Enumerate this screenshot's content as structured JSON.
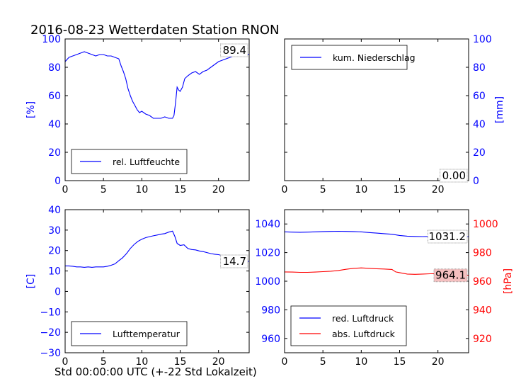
{
  "figure": {
    "title": "2016-08-23 Wetterdaten Station RNON",
    "xlabel": "Std 00:00:00 UTC (+-22 Std Lokalzeit)"
  },
  "colors": {
    "blue": "#0000ff",
    "red": "#ff0000",
    "last_bg": "#ffffff",
    "last_bg_red": "#f4c0c0"
  },
  "chart_data": [
    {
      "id": "humidity",
      "type": "line",
      "xlim": [
        0,
        24
      ],
      "ylim": [
        0,
        100
      ],
      "xticks": [
        0,
        5,
        10,
        15,
        20
      ],
      "yticks": [
        0,
        20,
        40,
        60,
        80,
        100
      ],
      "ylabel": "[%]",
      "yaxis_side": "left",
      "legend_loc": "lower left",
      "last_value": "89.4",
      "series": [
        {
          "name": "rel. Luftfeuchte",
          "color": "#0000ff",
          "x": [
            0,
            0.5,
            1,
            1.5,
            2,
            2.5,
            3,
            3.5,
            4,
            4.5,
            5,
            5.5,
            6,
            6.5,
            7,
            7.3,
            7.6,
            7.9,
            8.2,
            8.5,
            8.8,
            9.1,
            9.4,
            9.7,
            10,
            10.5,
            11,
            11.5,
            12,
            12.5,
            13,
            13.5,
            14,
            14.2,
            14.4,
            14.6,
            14.8,
            15,
            15.3,
            15.6,
            16,
            16.5,
            17,
            17.5,
            18,
            18.5,
            19,
            19.5,
            20,
            20.5,
            21,
            21.5,
            22,
            22.5,
            23,
            23.5,
            24
          ],
          "y": [
            84,
            87,
            88,
            89,
            90,
            91,
            90,
            89,
            88,
            89,
            89,
            88,
            88,
            87,
            86,
            81,
            77,
            72,
            65,
            60,
            56,
            53,
            50,
            48,
            49,
            47,
            46,
            44,
            44,
            44,
            45,
            44,
            44,
            46,
            55,
            66,
            64,
            63,
            66,
            72,
            74,
            76,
            77,
            75,
            77,
            78,
            80,
            82,
            84,
            85,
            86,
            87,
            88,
            89,
            90,
            90,
            89
          ]
        }
      ]
    },
    {
      "id": "precip",
      "type": "line",
      "xlim": [
        0,
        24
      ],
      "ylim": [
        0,
        100
      ],
      "xticks": [
        0,
        5,
        10,
        15,
        20
      ],
      "yticks": [
        0,
        20,
        40,
        60,
        80,
        100
      ],
      "ylabel": "[mm]",
      "yaxis_side": "right",
      "legend_loc": "upper left",
      "last_value": "0.00",
      "series": [
        {
          "name": "kum. Niederschlag",
          "color": "#0000ff",
          "x": [
            0,
            24
          ],
          "y": [
            0,
            0
          ]
        }
      ]
    },
    {
      "id": "temperature",
      "type": "line",
      "xlim": [
        0,
        24
      ],
      "ylim": [
        -30,
        40
      ],
      "xticks": [
        0,
        5,
        10,
        15,
        20
      ],
      "yticks": [
        -30,
        -20,
        -10,
        0,
        10,
        20,
        30,
        40
      ],
      "ylabel": "[C]",
      "yaxis_side": "left",
      "legend_loc": "lower left",
      "last_value": "14.7",
      "series": [
        {
          "name": "Lufttemperatur",
          "color": "#0000ff",
          "x": [
            0,
            0.5,
            1,
            1.5,
            2,
            2.5,
            3,
            3.5,
            4,
            4.5,
            5,
            5.5,
            6,
            6.5,
            7,
            7.5,
            8,
            8.5,
            9,
            9.5,
            10,
            10.5,
            11,
            11.5,
            12,
            12.5,
            13,
            13.5,
            14,
            14.3,
            14.6,
            15,
            15.5,
            16,
            16.5,
            17,
            17.5,
            18,
            18.5,
            19,
            19.5,
            20,
            20.5,
            21,
            21.5,
            22,
            22.5,
            23,
            23.5,
            24
          ],
          "y": [
            12.5,
            12.5,
            12.3,
            12,
            12,
            11.8,
            12,
            11.8,
            12,
            12,
            12,
            12.3,
            12.8,
            13.5,
            15,
            16.5,
            18.5,
            21,
            23,
            24.5,
            25.5,
            26.3,
            26.8,
            27.2,
            27.6,
            28,
            28.3,
            29,
            29.5,
            27,
            23.5,
            22.5,
            22.8,
            21,
            20.5,
            20.3,
            19.8,
            19.5,
            19,
            18.5,
            18.2,
            18,
            17.5,
            17,
            16.5,
            16,
            15.5,
            15.2,
            15,
            14.7
          ]
        }
      ]
    },
    {
      "id": "pressure",
      "type": "line",
      "xlim": [
        0,
        24
      ],
      "ylim": [
        950,
        1050
      ],
      "ylim_right": [
        910,
        1010
      ],
      "xticks": [
        0,
        5,
        10,
        15,
        20
      ],
      "yticks": [
        960,
        980,
        1000,
        1020,
        1040
      ],
      "yticks_right": [
        920,
        940,
        960,
        980,
        1000
      ],
      "ylabel_right": "[hPa]",
      "legend_loc": "lower left",
      "last_value_blue": "1031.2",
      "last_value_red": "964.1",
      "series": [
        {
          "name": "red. Luftdruck",
          "color": "#0000ff",
          "axis": "left",
          "x": [
            0,
            1,
            2,
            3,
            4,
            5,
            6,
            7,
            8,
            9,
            10,
            11,
            12,
            13,
            14,
            15,
            16,
            17,
            18,
            19,
            20,
            21,
            22,
            23,
            24
          ],
          "y": [
            1034.5,
            1034.3,
            1034.2,
            1034.3,
            1034.5,
            1034.7,
            1034.8,
            1034.9,
            1034.8,
            1034.7,
            1034.5,
            1034.0,
            1033.6,
            1033.2,
            1032.8,
            1032.0,
            1031.5,
            1031.3,
            1031.2,
            1031.3,
            1031.6,
            1031.8,
            1031.6,
            1031.4,
            1031.2
          ]
        },
        {
          "name": "abs. Luftdruck",
          "color": "#ff0000",
          "axis": "right",
          "x": [
            0,
            1,
            2,
            3,
            4,
            5,
            6,
            7,
            8,
            9,
            10,
            11,
            12,
            13,
            14,
            14.5,
            15,
            16,
            17,
            18,
            19,
            20,
            21,
            22,
            23,
            24
          ],
          "y": [
            966.5,
            966.4,
            966.2,
            966.2,
            966.4,
            966.7,
            967.0,
            967.5,
            968.3,
            969.0,
            969.3,
            969.0,
            968.7,
            968.5,
            968.2,
            966.5,
            966.0,
            965.0,
            964.8,
            965.0,
            965.2,
            965.3,
            965.0,
            964.7,
            964.4,
            964.1
          ]
        }
      ]
    }
  ]
}
